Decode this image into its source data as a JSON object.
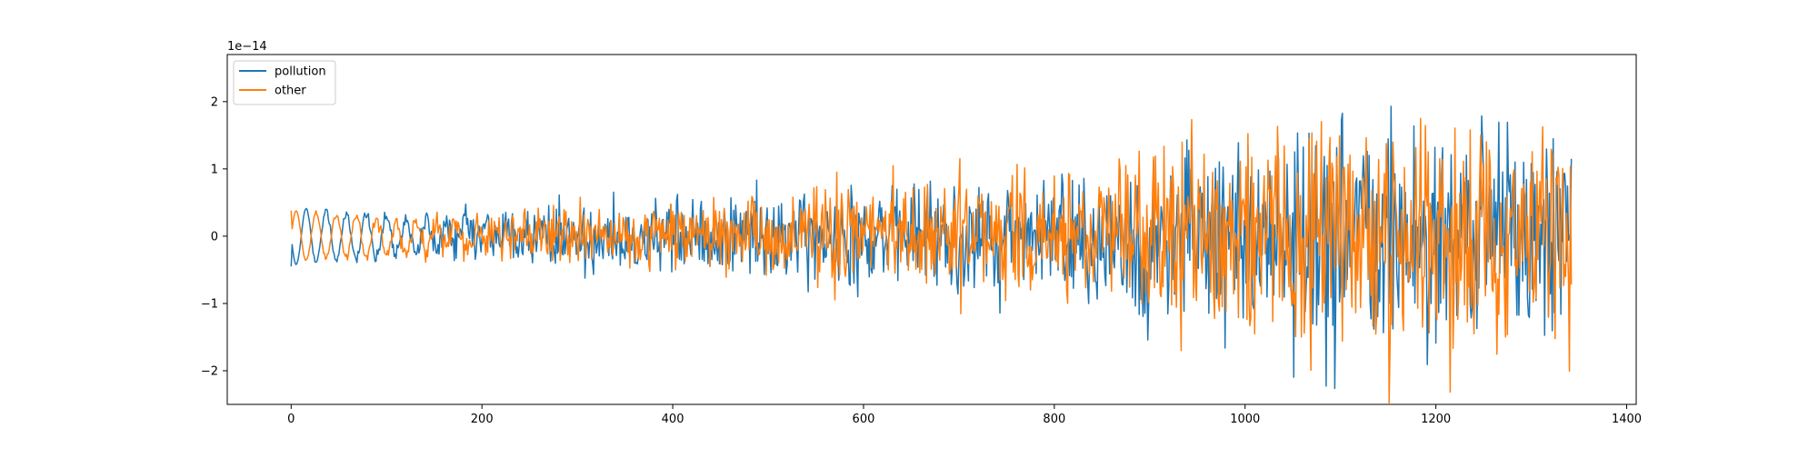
{
  "chart_data": {
    "type": "line",
    "title": "",
    "xlabel": "",
    "ylabel": "",
    "offset_label": "1e−14",
    "xlim": [
      -67,
      1410
    ],
    "ylim": [
      -2.5,
      2.7
    ],
    "x_ticks": [
      0,
      200,
      400,
      600,
      800,
      1000,
      1200,
      1400
    ],
    "x_tick_labels": [
      "0",
      "200",
      "400",
      "600",
      "800",
      "1000",
      "1200",
      "1400"
    ],
    "y_ticks": [
      -2,
      -1,
      0,
      1,
      2
    ],
    "y_tick_labels": [
      "−2",
      "−1",
      "0",
      "1",
      "2"
    ],
    "legend_position": "upper-left",
    "grid": false,
    "n_points": 1343,
    "series": [
      {
        "name": "pollution",
        "color": "#1f77b4",
        "envelope": [
          [
            0,
            0.45
          ],
          [
            200,
            0.55
          ],
          [
            400,
            0.7
          ],
          [
            600,
            1.0
          ],
          [
            800,
            1.2
          ],
          [
            1000,
            1.9
          ],
          [
            1150,
            2.48
          ],
          [
            1342,
            2.0
          ]
        ],
        "phase": 3.14159,
        "end_values": {
          "first": -0.45,
          "last": 1.15
        }
      },
      {
        "name": "other",
        "color": "#ff7f0e",
        "envelope": [
          [
            0,
            0.4
          ],
          [
            200,
            0.5
          ],
          [
            400,
            0.65
          ],
          [
            600,
            1.0
          ],
          [
            800,
            1.3
          ],
          [
            1000,
            1.9
          ],
          [
            1150,
            2.48
          ],
          [
            1342,
            2.0
          ]
        ],
        "phase": 0,
        "end_values": {
          "first": 0.38,
          "last": -0.72
        }
      }
    ]
  }
}
